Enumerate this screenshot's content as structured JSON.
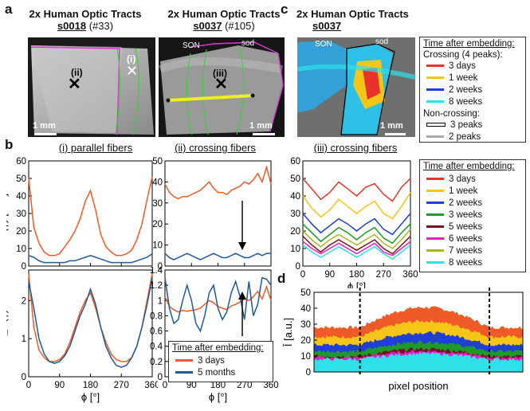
{
  "panels": {
    "a": "a",
    "b": "b",
    "c": "c",
    "d": "d"
  },
  "top": {
    "img1": {
      "title": "2x Human Optic Tracts",
      "id": "s0018",
      "num": "(#33)",
      "scale": "1 mm",
      "roi1": "(i)",
      "roi2": "(ii)"
    },
    "img2": {
      "title": "2x Human Optic Tracts",
      "id": "s0037",
      "num": "(#105)",
      "scale": "1 mm",
      "son": "SON",
      "sod": "sod",
      "roi3": "(iii)"
    },
    "img3": {
      "title": "2x Human Optic Tracts",
      "id": "s0037",
      "scale": "1 mm",
      "son": "SON",
      "sod": "sod"
    }
  },
  "legend_c": {
    "title": "Time after embedding:",
    "crossing_header": "Crossing (4 peaks):",
    "crossing": [
      {
        "label": "3 days",
        "color": "#e8322a"
      },
      {
        "label": "1 week",
        "color": "#f5c518"
      },
      {
        "label": "2 weeks",
        "color": "#1f3fd6"
      },
      {
        "label": "8 weeks",
        "color": "#2ee0e8"
      }
    ],
    "noncross_header": "Non-crossing:",
    "noncross": [
      {
        "label": "3 peaks",
        "color": "#ffffff"
      },
      {
        "label": "2 peaks",
        "color": "#a8a8a8"
      }
    ]
  },
  "legend_b": {
    "title": "Time after embedding:",
    "items": [
      {
        "label": "3 days",
        "color": "#f05a28"
      },
      {
        "label": "5 months",
        "color": "#1f5a96"
      }
    ]
  },
  "legend_iii": {
    "title": "Time after embedding:",
    "items": [
      {
        "label": "3 days",
        "color": "#e8322a"
      },
      {
        "label": "1 week",
        "color": "#f5c518"
      },
      {
        "label": "2 weeks",
        "color": "#1f3fd6"
      },
      {
        "label": "3 weeks",
        "color": "#1e9a2a"
      },
      {
        "label": "5 weeks",
        "color": "#7a1020"
      },
      {
        "label": "6 weeks",
        "color": "#e81cc8"
      },
      {
        "label": "7 weeks",
        "color": "#a8b81a"
      },
      {
        "label": "8 weeks",
        "color": "#2ee0e8"
      }
    ]
  },
  "chart_data": [
    {
      "type": "line",
      "id": "b_i_top",
      "title": "(i) parallel fibers",
      "ylabel": "I(ϕ) [a.u.]",
      "xlim": [
        0,
        360
      ],
      "ylim": [
        0,
        60
      ],
      "xticks": [
        "0",
        "90",
        "180",
        "270",
        "360"
      ],
      "yticks": [
        "0",
        "10",
        "20",
        "30",
        "40",
        "50",
        "60"
      ],
      "x": [
        0,
        15,
        30,
        45,
        60,
        75,
        90,
        105,
        120,
        135,
        150,
        165,
        180,
        195,
        210,
        225,
        240,
        255,
        270,
        285,
        300,
        315,
        330,
        345,
        360
      ],
      "series": [
        {
          "name": "3 days",
          "color": "#f05a28",
          "values": [
            50,
            22,
            13,
            8,
            6,
            6,
            7,
            11,
            15,
            20,
            27,
            37,
            43,
            32,
            18,
            11,
            8,
            6,
            6,
            7,
            9,
            15,
            24,
            38,
            51
          ]
        },
        {
          "name": "5 months",
          "color": "#1f5a96",
          "values": [
            6,
            5,
            3,
            2,
            2,
            2,
            2,
            2,
            3,
            3,
            4,
            5,
            6,
            5,
            4,
            3,
            2,
            2,
            2,
            2,
            2,
            3,
            4,
            5,
            7
          ]
        }
      ]
    },
    {
      "type": "line",
      "id": "b_ii_top",
      "title": "(ii) crossing fibers",
      "xlim": [
        0,
        360
      ],
      "ylim": [
        0,
        50
      ],
      "xticks": [
        "0",
        "90",
        "180",
        "270",
        "360"
      ],
      "yticks": [
        "0",
        "10",
        "20",
        "30",
        "40",
        "50"
      ],
      "x": [
        0,
        15,
        30,
        45,
        60,
        75,
        90,
        105,
        120,
        135,
        150,
        165,
        180,
        195,
        210,
        225,
        240,
        255,
        270,
        285,
        300,
        315,
        330,
        345,
        360
      ],
      "series": [
        {
          "name": "3 days",
          "color": "#f05a28",
          "values": [
            39,
            35,
            33,
            32,
            33,
            33,
            34,
            35,
            36,
            38,
            40,
            37,
            35,
            35,
            34,
            36,
            37,
            38,
            40,
            39,
            41,
            44,
            40,
            47,
            39
          ]
        },
        {
          "name": "5 months",
          "color": "#1f5a96",
          "values": [
            6,
            4,
            3,
            4,
            5,
            6,
            5,
            4,
            3,
            4,
            5,
            6,
            5,
            4,
            4,
            5,
            6,
            5,
            4,
            4,
            5,
            6,
            5,
            6,
            6
          ]
        }
      ]
    },
    {
      "type": "line",
      "id": "b_i_bot",
      "ylabel": "I_N(ϕ)",
      "xlabel": "ϕ [°]",
      "xlim": [
        0,
        360
      ],
      "ylim": [
        0,
        2.8
      ],
      "xticks": [
        "0",
        "90",
        "180",
        "270",
        "360"
      ],
      "yticks": [
        "0",
        "1",
        "2"
      ],
      "x": [
        0,
        15,
        30,
        45,
        60,
        75,
        90,
        105,
        120,
        135,
        150,
        165,
        180,
        195,
        210,
        225,
        240,
        255,
        270,
        285,
        300,
        315,
        330,
        345,
        360
      ],
      "series": [
        {
          "name": "3 days",
          "color": "#f05a28",
          "values": [
            2.7,
            1.3,
            0.7,
            0.5,
            0.4,
            0.4,
            0.45,
            0.6,
            0.9,
            1.3,
            1.7,
            2.0,
            2.2,
            1.8,
            1.3,
            0.9,
            0.6,
            0.45,
            0.4,
            0.4,
            0.5,
            0.8,
            1.3,
            2.0,
            2.7
          ]
        },
        {
          "name": "5 months",
          "color": "#1f5a96",
          "values": [
            2.5,
            1.8,
            1.0,
            0.6,
            0.4,
            0.35,
            0.4,
            0.55,
            0.8,
            1.2,
            1.6,
            1.9,
            2.3,
            1.9,
            1.3,
            0.8,
            0.5,
            0.3,
            0.25,
            0.3,
            0.5,
            0.8,
            1.3,
            1.9,
            2.6
          ]
        }
      ]
    },
    {
      "type": "line",
      "id": "b_ii_bot",
      "xlabel": "ϕ [°]",
      "xlim": [
        0,
        360
      ],
      "ylim": [
        0,
        1.4
      ],
      "xticks": [
        "0",
        "90",
        "180",
        "270",
        "360"
      ],
      "yticks": [
        "0",
        "0.2",
        "0.4",
        "0.6",
        "0.8",
        "1",
        "1.2",
        "1.4"
      ],
      "x": [
        0,
        15,
        30,
        45,
        60,
        75,
        90,
        105,
        120,
        135,
        150,
        165,
        180,
        195,
        210,
        225,
        240,
        255,
        270,
        285,
        300,
        315,
        330,
        345,
        360
      ],
      "series": [
        {
          "name": "3 days",
          "color": "#f05a28",
          "values": [
            1.05,
            0.92,
            0.88,
            0.85,
            0.87,
            0.86,
            0.87,
            0.88,
            0.9,
            0.95,
            1.0,
            0.97,
            0.92,
            0.9,
            0.88,
            0.93,
            0.95,
            0.98,
            1.02,
            1.0,
            1.05,
            1.12,
            1.02,
            1.18,
            1.0
          ]
        },
        {
          "name": "5 months",
          "color": "#1f5a96",
          "values": [
            1.3,
            0.9,
            0.7,
            0.75,
            1.0,
            1.2,
            1.0,
            0.7,
            0.6,
            0.8,
            1.1,
            1.2,
            0.9,
            0.75,
            0.85,
            1.1,
            1.25,
            1.05,
            0.75,
            1.25,
            0.8,
            0.95,
            1.3,
            1.28,
            1.2
          ]
        }
      ]
    },
    {
      "type": "line",
      "id": "c_iii",
      "title": "(iii) crossing fibers",
      "xlabel": "ϕ [°]",
      "xlim": [
        0,
        360
      ],
      "ylim": [
        0,
        60
      ],
      "xticks": [
        "0",
        "90",
        "180",
        "270",
        "360"
      ],
      "yticks": [
        "0",
        "10",
        "20",
        "30",
        "40",
        "50",
        "60"
      ],
      "x": [
        0,
        30,
        60,
        90,
        120,
        150,
        180,
        210,
        240,
        270,
        300,
        330,
        360
      ],
      "series": [
        {
          "name": "3 days",
          "color": "#e8322a",
          "values": [
            50,
            44,
            38,
            42,
            48,
            44,
            40,
            45,
            47,
            41,
            37,
            45,
            50
          ]
        },
        {
          "name": "1 week",
          "color": "#f5c518",
          "values": [
            40,
            33,
            28,
            32,
            38,
            34,
            30,
            34,
            37,
            30,
            27,
            34,
            42
          ]
        },
        {
          "name": "2 weeks",
          "color": "#1f3fd6",
          "values": [
            30,
            24,
            19,
            23,
            27,
            24,
            20,
            24,
            27,
            21,
            18,
            24,
            30
          ]
        },
        {
          "name": "3 weeks",
          "color": "#1e9a2a",
          "values": [
            24,
            19,
            14,
            18,
            22,
            19,
            15,
            19,
            22,
            16,
            13,
            19,
            24
          ]
        },
        {
          "name": "5 weeks",
          "color": "#7a1020",
          "values": [
            17,
            12,
            8,
            12,
            15,
            12,
            9,
            12,
            15,
            10,
            7,
            12,
            17
          ]
        },
        {
          "name": "6 weeks",
          "color": "#e81cc8",
          "values": [
            14,
            10,
            7,
            10,
            13,
            10,
            7,
            10,
            13,
            8,
            6,
            10,
            14
          ]
        },
        {
          "name": "7 weeks",
          "color": "#a8b81a",
          "values": [
            20,
            15,
            11,
            15,
            18,
            15,
            12,
            15,
            18,
            13,
            10,
            15,
            21
          ]
        },
        {
          "name": "8 weeks",
          "color": "#2ee0e8",
          "values": [
            12,
            8,
            5,
            8,
            11,
            8,
            5,
            8,
            11,
            7,
            4,
            8,
            12
          ]
        }
      ]
    },
    {
      "type": "area",
      "id": "d",
      "ylabel": "Ī [a.u.]",
      "xlabel": "pixel position",
      "ylim": [
        0,
        50
      ],
      "yticks": [
        "0",
        "10",
        "20",
        "30",
        "40",
        "50"
      ],
      "note": "stacked areas across pixel positions; crossing region between the two dashed lines",
      "series": [
        {
          "name": "8 weeks",
          "color": "#2ee0e8",
          "level": 8
        },
        {
          "name": "6 weeks",
          "color": "#e81cc8",
          "level": 9
        },
        {
          "name": "5 weeks",
          "color": "#7a1020",
          "level": 10
        },
        {
          "name": "3 weeks",
          "color": "#1e9a2a",
          "level": 13
        },
        {
          "name": "2 weeks",
          "color": "#1f3fd6",
          "level": 17
        },
        {
          "name": "1 week",
          "color": "#f5c518",
          "level": 22
        },
        {
          "name": "3 days",
          "color": "#f05a28",
          "level": 28
        }
      ]
    }
  ]
}
